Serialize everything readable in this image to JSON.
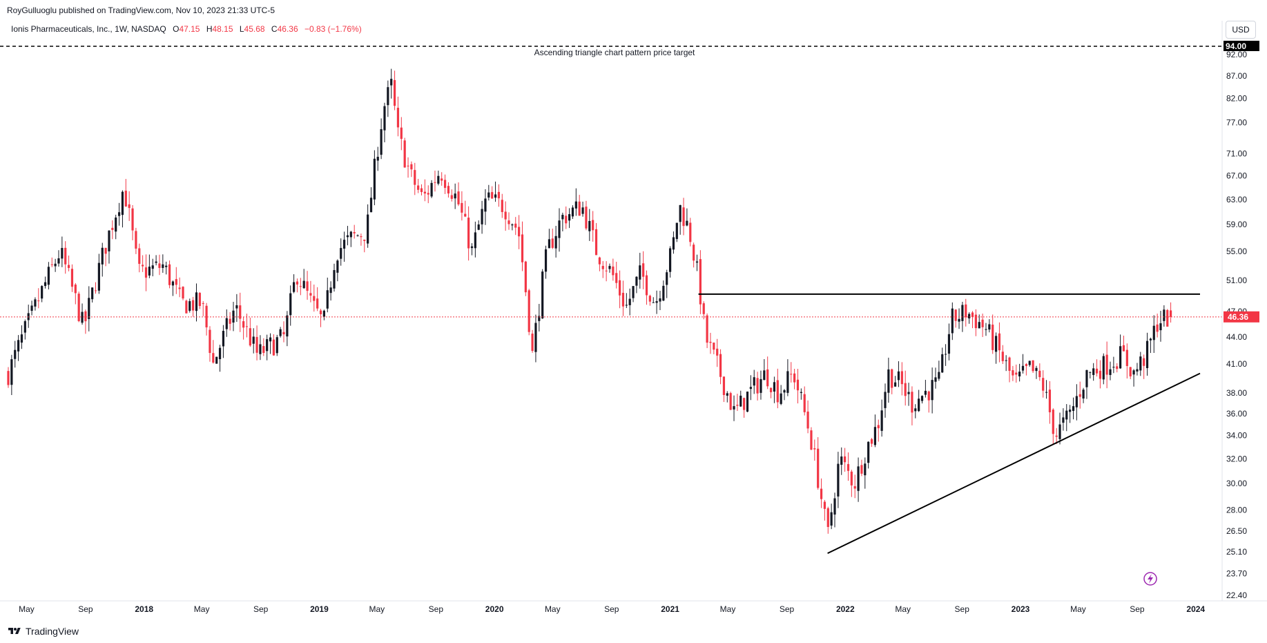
{
  "header": {
    "publisher": "RoyGulluoglu published on TradingView.com, Nov 10, 2023 21:33 UTC-5",
    "currency": "USD"
  },
  "legend": {
    "symbol": "Ionis Pharmaceuticals, Inc., 1W, NASDAQ",
    "open_label": "O",
    "open": "47.15",
    "high_label": "H",
    "high": "48.15",
    "low_label": "L",
    "low": "45.68",
    "close_label": "C",
    "close": "46.36",
    "change": "−0.83 (−1.76%)"
  },
  "footer": {
    "brand": "TradingView"
  },
  "colors": {
    "up": "#131722",
    "down": "#f23645",
    "current_price": "#f23645",
    "target": "#000000"
  },
  "chart_data": {
    "type": "candlestick",
    "title": "Ionis Pharmaceuticals, Inc., 1W, NASDAQ",
    "x_axis": {
      "tick_labels": [
        "May",
        "Sep",
        "2018",
        "May",
        "Sep",
        "2019",
        "May",
        "Sep",
        "2020",
        "May",
        "Sep",
        "2021",
        "May",
        "Sep",
        "2022",
        "May",
        "Sep",
        "2023",
        "May",
        "Sep",
        "2024"
      ],
      "bold_labels": [
        "2018",
        "2019",
        "2020",
        "2021",
        "2022",
        "2023",
        "2024"
      ],
      "tick_dates": [
        "2017-05-01",
        "2017-09-01",
        "2018-01-01",
        "2018-05-01",
        "2018-09-01",
        "2019-01-01",
        "2019-05-01",
        "2019-09-01",
        "2020-01-01",
        "2020-05-01",
        "2020-09-01",
        "2021-01-01",
        "2021-05-01",
        "2021-09-01",
        "2022-01-01",
        "2022-05-01",
        "2022-09-01",
        "2023-01-01",
        "2023-05-01",
        "2023-09-01",
        "2024-01-01"
      ]
    },
    "y_axis": {
      "scale": "log",
      "tick_labels": [
        "92.00",
        "87.00",
        "82.00",
        "77.00",
        "71.00",
        "67.00",
        "63.00",
        "59.00",
        "55.00",
        "51.00",
        "47.00",
        "44.00",
        "41.00",
        "38.00",
        "36.00",
        "34.00",
        "32.00",
        "30.00",
        "28.00",
        "26.50",
        "25.10",
        "23.70",
        "22.40"
      ],
      "range": [
        22.0,
        96.0
      ]
    },
    "current_price": 46.36,
    "target_price": 94.0,
    "target_label": "94.00",
    "annotation": "Ascending triangle chart pattern price target",
    "trendlines": [
      {
        "name": "resistance",
        "start": [
          "2021-03-01",
          49.2
        ],
        "end": [
          "2024-01-10",
          49.2
        ]
      },
      {
        "name": "support",
        "start": [
          "2021-11-25",
          25.0
        ],
        "end": [
          "2024-01-10",
          40.0
        ]
      }
    ],
    "anchors": [
      [
        "2017-03-24",
        40.0
      ],
      [
        "2017-05-15",
        47.0
      ],
      [
        "2017-07-10",
        55.0
      ],
      [
        "2017-08-28",
        45.0
      ],
      [
        "2017-10-30",
        60.0
      ],
      [
        "2017-11-20",
        65.0
      ],
      [
        "2017-12-20",
        52.0
      ],
      [
        "2018-02-10",
        53.0
      ],
      [
        "2018-03-20",
        48.0
      ],
      [
        "2018-05-01",
        48.0
      ],
      [
        "2018-05-25",
        41.0
      ],
      [
        "2018-07-10",
        47.5
      ],
      [
        "2018-08-25",
        42.0
      ],
      [
        "2018-10-20",
        44.0
      ],
      [
        "2018-11-15",
        52.0
      ],
      [
        "2018-12-15",
        48.0
      ],
      [
        "2019-01-10",
        45.5
      ],
      [
        "2019-02-05",
        55.0
      ],
      [
        "2019-03-10",
        57.0
      ],
      [
        "2019-04-10",
        58.0
      ],
      [
        "2019-05-15",
        80.0
      ],
      [
        "2019-06-01",
        85.0
      ],
      [
        "2019-06-12",
        75.0
      ],
      [
        "2019-07-10",
        67.0
      ],
      [
        "2019-08-05",
        63.0
      ],
      [
        "2019-09-10",
        68.0
      ],
      [
        "2019-10-15",
        63.0
      ],
      [
        "2019-11-15",
        55.0
      ],
      [
        "2019-12-15",
        63.0
      ],
      [
        "2020-01-20",
        62.0
      ],
      [
        "2020-02-20",
        58.0
      ],
      [
        "2020-03-20",
        42.0
      ],
      [
        "2020-04-20",
        55.0
      ],
      [
        "2020-05-20",
        60.0
      ],
      [
        "2020-07-01",
        62.0
      ],
      [
        "2020-08-01",
        55.0
      ],
      [
        "2020-09-01",
        52.0
      ],
      [
        "2020-10-01",
        47.5
      ],
      [
        "2020-11-01",
        52.0
      ],
      [
        "2020-12-01",
        48.0
      ],
      [
        "2021-01-05",
        55.0
      ],
      [
        "2021-01-20",
        62.0
      ],
      [
        "2021-02-10",
        58.0
      ],
      [
        "2021-03-01",
        51.0
      ],
      [
        "2021-03-15",
        44.0
      ],
      [
        "2021-04-15",
        40.0
      ],
      [
        "2021-05-15",
        36.0
      ],
      [
        "2021-06-15",
        38.0
      ],
      [
        "2021-07-20",
        40.0
      ],
      [
        "2021-08-15",
        38.0
      ],
      [
        "2021-09-15",
        40.0
      ],
      [
        "2021-10-20",
        34.0
      ],
      [
        "2021-11-25",
        26.0
      ],
      [
        "2021-12-20",
        32.0
      ],
      [
        "2022-01-20",
        30.0
      ],
      [
        "2022-02-15",
        33.0
      ],
      [
        "2022-03-10",
        35.0
      ],
      [
        "2022-04-01",
        40.0
      ],
      [
        "2022-04-25",
        39.0
      ],
      [
        "2022-05-20",
        37.0
      ],
      [
        "2022-06-15",
        38.0
      ],
      [
        "2022-07-15",
        39.0
      ],
      [
        "2022-08-10",
        46.0
      ],
      [
        "2022-09-10",
        47.0
      ],
      [
        "2022-10-20",
        45.0
      ],
      [
        "2022-11-20",
        42.0
      ],
      [
        "2022-12-20",
        39.0
      ],
      [
        "2023-01-20",
        40.5
      ],
      [
        "2023-02-15",
        39.0
      ],
      [
        "2023-03-15",
        34.0
      ],
      [
        "2023-04-15",
        36.0
      ],
      [
        "2023-05-20",
        40.0
      ],
      [
        "2023-07-01",
        41.0
      ],
      [
        "2023-08-01",
        42.0
      ],
      [
        "2023-08-25",
        40.0
      ],
      [
        "2023-09-20",
        42.0
      ],
      [
        "2023-10-15",
        46.0
      ],
      [
        "2023-11-10",
        46.36
      ]
    ]
  }
}
